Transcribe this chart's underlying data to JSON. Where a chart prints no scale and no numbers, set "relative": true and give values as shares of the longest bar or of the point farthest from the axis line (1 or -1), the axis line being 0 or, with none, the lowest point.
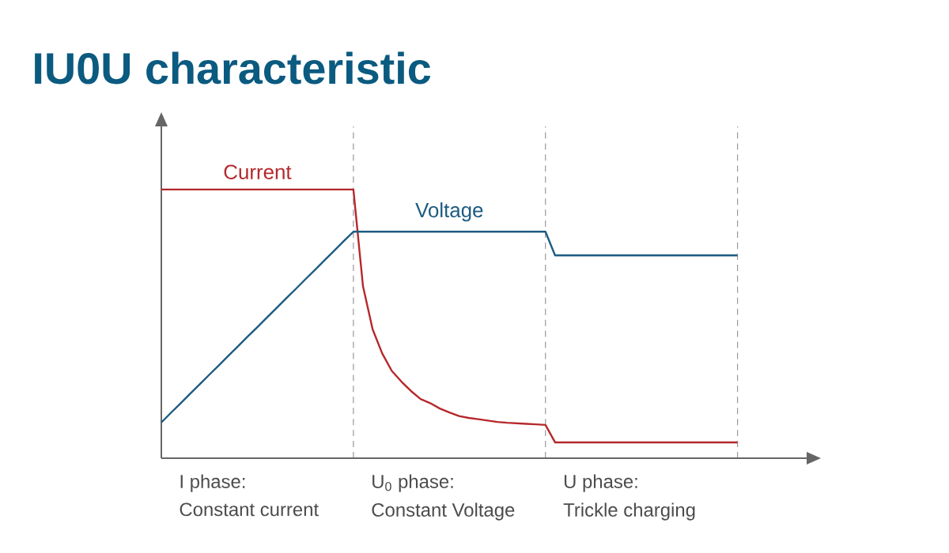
{
  "chart_data": {
    "type": "line",
    "title": "IU0U characteristic",
    "relative": true,
    "grid": "x",
    "legend": false,
    "marker": "none",
    "line_style": "solid",
    "categories": [
      null,
      null,
      null,
      null,
      null,
      null,
      null,
      null,
      null,
      null,
      null,
      null,
      null,
      null,
      null,
      null,
      null,
      null,
      null,
      null,
      null,
      null,
      null,
      null,
      null,
      null,
      null,
      null,
      null,
      null,
      null,
      null,
      null,
      null,
      null,
      null,
      null,
      null,
      null,
      null,
      null,
      null,
      null,
      null,
      null,
      null,
      null,
      null,
      null,
      null,
      null,
      null,
      null,
      null,
      null,
      null,
      null,
      null,
      null,
      null,
      null
    ],
    "series": [
      {
        "name": "Current",
        "color": "#b5282b",
        "values": [
          1,
          1,
          1,
          1,
          1,
          1,
          1,
          1,
          1,
          1,
          1,
          1,
          1,
          1,
          1,
          1,
          1,
          1,
          1,
          1,
          1,
          0.64,
          0.48,
          0.39,
          0.325,
          0.285,
          0.25,
          0.22,
          0.205,
          0.185,
          0.17,
          0.157,
          0.15,
          0.145,
          0.14,
          0.135,
          0.132,
          0.13,
          0.128,
          0.126,
          0.124,
          0.059,
          0.059,
          0.059,
          0.059,
          0.059,
          0.059,
          0.059,
          0.059,
          0.059,
          0.059,
          0.059,
          0.059,
          0.059,
          0.059,
          0.059,
          0.059,
          0.059,
          0.059,
          0.059,
          0.059
        ]
      },
      {
        "name": "Voltage",
        "color": "#1d5b82",
        "values": [
          0.133,
          0.169,
          0.204,
          0.24,
          0.275,
          0.311,
          0.346,
          0.382,
          0.417,
          0.453,
          0.488,
          0.524,
          0.559,
          0.595,
          0.63,
          0.666,
          0.701,
          0.737,
          0.772,
          0.808,
          0.843,
          0.843,
          0.843,
          0.843,
          0.843,
          0.843,
          0.843,
          0.843,
          0.843,
          0.843,
          0.843,
          0.843,
          0.843,
          0.843,
          0.843,
          0.843,
          0.843,
          0.843,
          0.843,
          0.843,
          0.843,
          0.755,
          0.755,
          0.755,
          0.755,
          0.755,
          0.755,
          0.755,
          0.755,
          0.755,
          0.755,
          0.755,
          0.755,
          0.755,
          0.755,
          0.755,
          0.755,
          0.755,
          0.755,
          0.755,
          0.755
        ]
      }
    ],
    "annotations": [
      "I phase:",
      "Constant current",
      "U$_{0}$ phase:",
      "Constant Voltage",
      "U phase:",
      "Trickle charging"
    ]
  }
}
